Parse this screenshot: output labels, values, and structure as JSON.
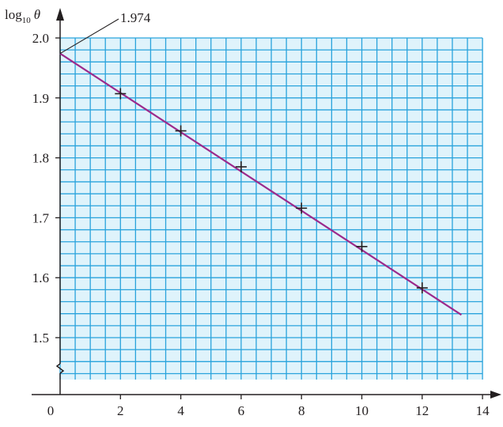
{
  "chart_data": {
    "type": "scatter",
    "ylabel_main": "log",
    "ylabel_sub": "10",
    "ylabel_var": "θ",
    "xlabel": "",
    "x_ticks": [
      0,
      2,
      4,
      6,
      8,
      10,
      12,
      14
    ],
    "y_ticks": [
      1.5,
      1.6,
      1.7,
      1.8,
      1.9,
      2.0
    ],
    "x_tick_labels": [
      "0",
      "2",
      "4",
      "6",
      "8",
      "10",
      "12",
      "14"
    ],
    "y_tick_labels": [
      "1.5",
      "1.6",
      "1.7",
      "1.8",
      "1.9",
      "2.0"
    ],
    "xlim": [
      0,
      14
    ],
    "ylim_grid": [
      1.43,
      2.0
    ],
    "axis_break": true,
    "grid": true,
    "series": [
      {
        "points": [
          {
            "x": 2,
            "y": 1.907
          },
          {
            "x": 4,
            "y": 1.845
          },
          {
            "x": 6,
            "y": 1.785
          },
          {
            "x": 8,
            "y": 1.716
          },
          {
            "x": 10,
            "y": 1.652
          },
          {
            "x": 12,
            "y": 1.583
          }
        ]
      }
    ],
    "fit_line": {
      "x_start": 0,
      "y_start": 1.974,
      "x_end": 13.3,
      "y_end": 1.538
    },
    "annotation": {
      "text": "1.974",
      "x": 0,
      "y": 1.974
    },
    "colors": {
      "grid": "#29a3dc",
      "grid_fill": "#dff3fb",
      "line": "#9c2a8c",
      "marker": "#231f20",
      "axis": "#231f20"
    }
  }
}
